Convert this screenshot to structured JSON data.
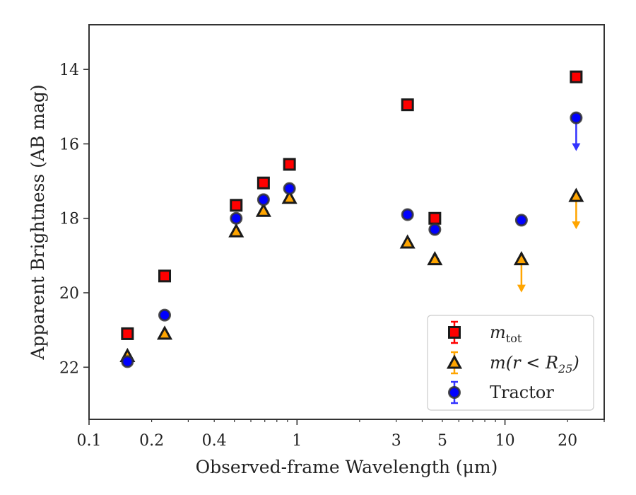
{
  "chart_data": {
    "type": "scatter",
    "xlabel": "Observed-frame Wavelength (μm)",
    "ylabel": "Apparent Brightness (AB mag)",
    "xscale": "log",
    "xlim": [
      0.1,
      30
    ],
    "ylim": [
      23.4,
      12.8
    ],
    "y_inverted": true,
    "grid": false,
    "legend_position": "lower-right",
    "x_tick_labels": [
      {
        "value": 0.1,
        "label": "0.1"
      },
      {
        "value": 0.2,
        "label": "0.2"
      },
      {
        "value": 0.4,
        "label": "0.4"
      },
      {
        "value": 1,
        "label": "1"
      },
      {
        "value": 3,
        "label": "3"
      },
      {
        "value": 5,
        "label": "5"
      },
      {
        "value": 10,
        "label": "10"
      },
      {
        "value": 20,
        "label": "20"
      }
    ],
    "y_tick_labels": [
      {
        "value": 14,
        "label": "14"
      },
      {
        "value": 16,
        "label": "16"
      },
      {
        "value": 18,
        "label": "18"
      },
      {
        "value": 20,
        "label": "20"
      },
      {
        "value": 22,
        "label": "22"
      }
    ],
    "series": [
      {
        "legend_main": "m",
        "legend_sub": "tot",
        "marker": "square",
        "face_color": "#ff0000",
        "edge_color": "#1a1a1a",
        "points": [
          {
            "x": 0.153,
            "y": 21.1
          },
          {
            "x": 0.231,
            "y": 19.55
          },
          {
            "x": 0.51,
            "y": 17.65
          },
          {
            "x": 0.69,
            "y": 17.05
          },
          {
            "x": 0.92,
            "y": 16.55
          },
          {
            "x": 3.4,
            "y": 14.95
          },
          {
            "x": 4.6,
            "y": 18.0
          },
          {
            "x": 22.0,
            "y": 14.2
          }
        ]
      },
      {
        "legend_main": "m(r < R",
        "legend_sub": "25",
        "legend_end": ")",
        "marker": "triangle",
        "face_color": "#ffa500",
        "edge_color": "#1a1a1a",
        "arrow_color": "#ffa500",
        "points": [
          {
            "x": 0.153,
            "y": 21.7
          },
          {
            "x": 0.231,
            "y": 21.1
          },
          {
            "x": 0.51,
            "y": 18.35
          },
          {
            "x": 0.69,
            "y": 17.8
          },
          {
            "x": 0.92,
            "y": 17.45
          },
          {
            "x": 3.4,
            "y": 18.65
          },
          {
            "x": 4.6,
            "y": 19.1
          },
          {
            "x": 12.0,
            "y": 19.1,
            "upper_limit": true
          },
          {
            "x": 22.0,
            "y": 17.4,
            "upper_limit": true
          }
        ]
      },
      {
        "name": "Tractor",
        "marker": "circle",
        "face_color": "#0000ff",
        "edge_color": "#333333",
        "arrow_color": "#3333ff",
        "points": [
          {
            "x": 0.153,
            "y": 21.85
          },
          {
            "x": 0.231,
            "y": 20.6
          },
          {
            "x": 0.51,
            "y": 18.0
          },
          {
            "x": 0.69,
            "y": 17.5
          },
          {
            "x": 0.92,
            "y": 17.2
          },
          {
            "x": 3.4,
            "y": 17.9
          },
          {
            "x": 4.6,
            "y": 18.3
          },
          {
            "x": 12.0,
            "y": 18.05
          },
          {
            "x": 22.0,
            "y": 15.3,
            "upper_limit": true
          }
        ]
      }
    ]
  }
}
